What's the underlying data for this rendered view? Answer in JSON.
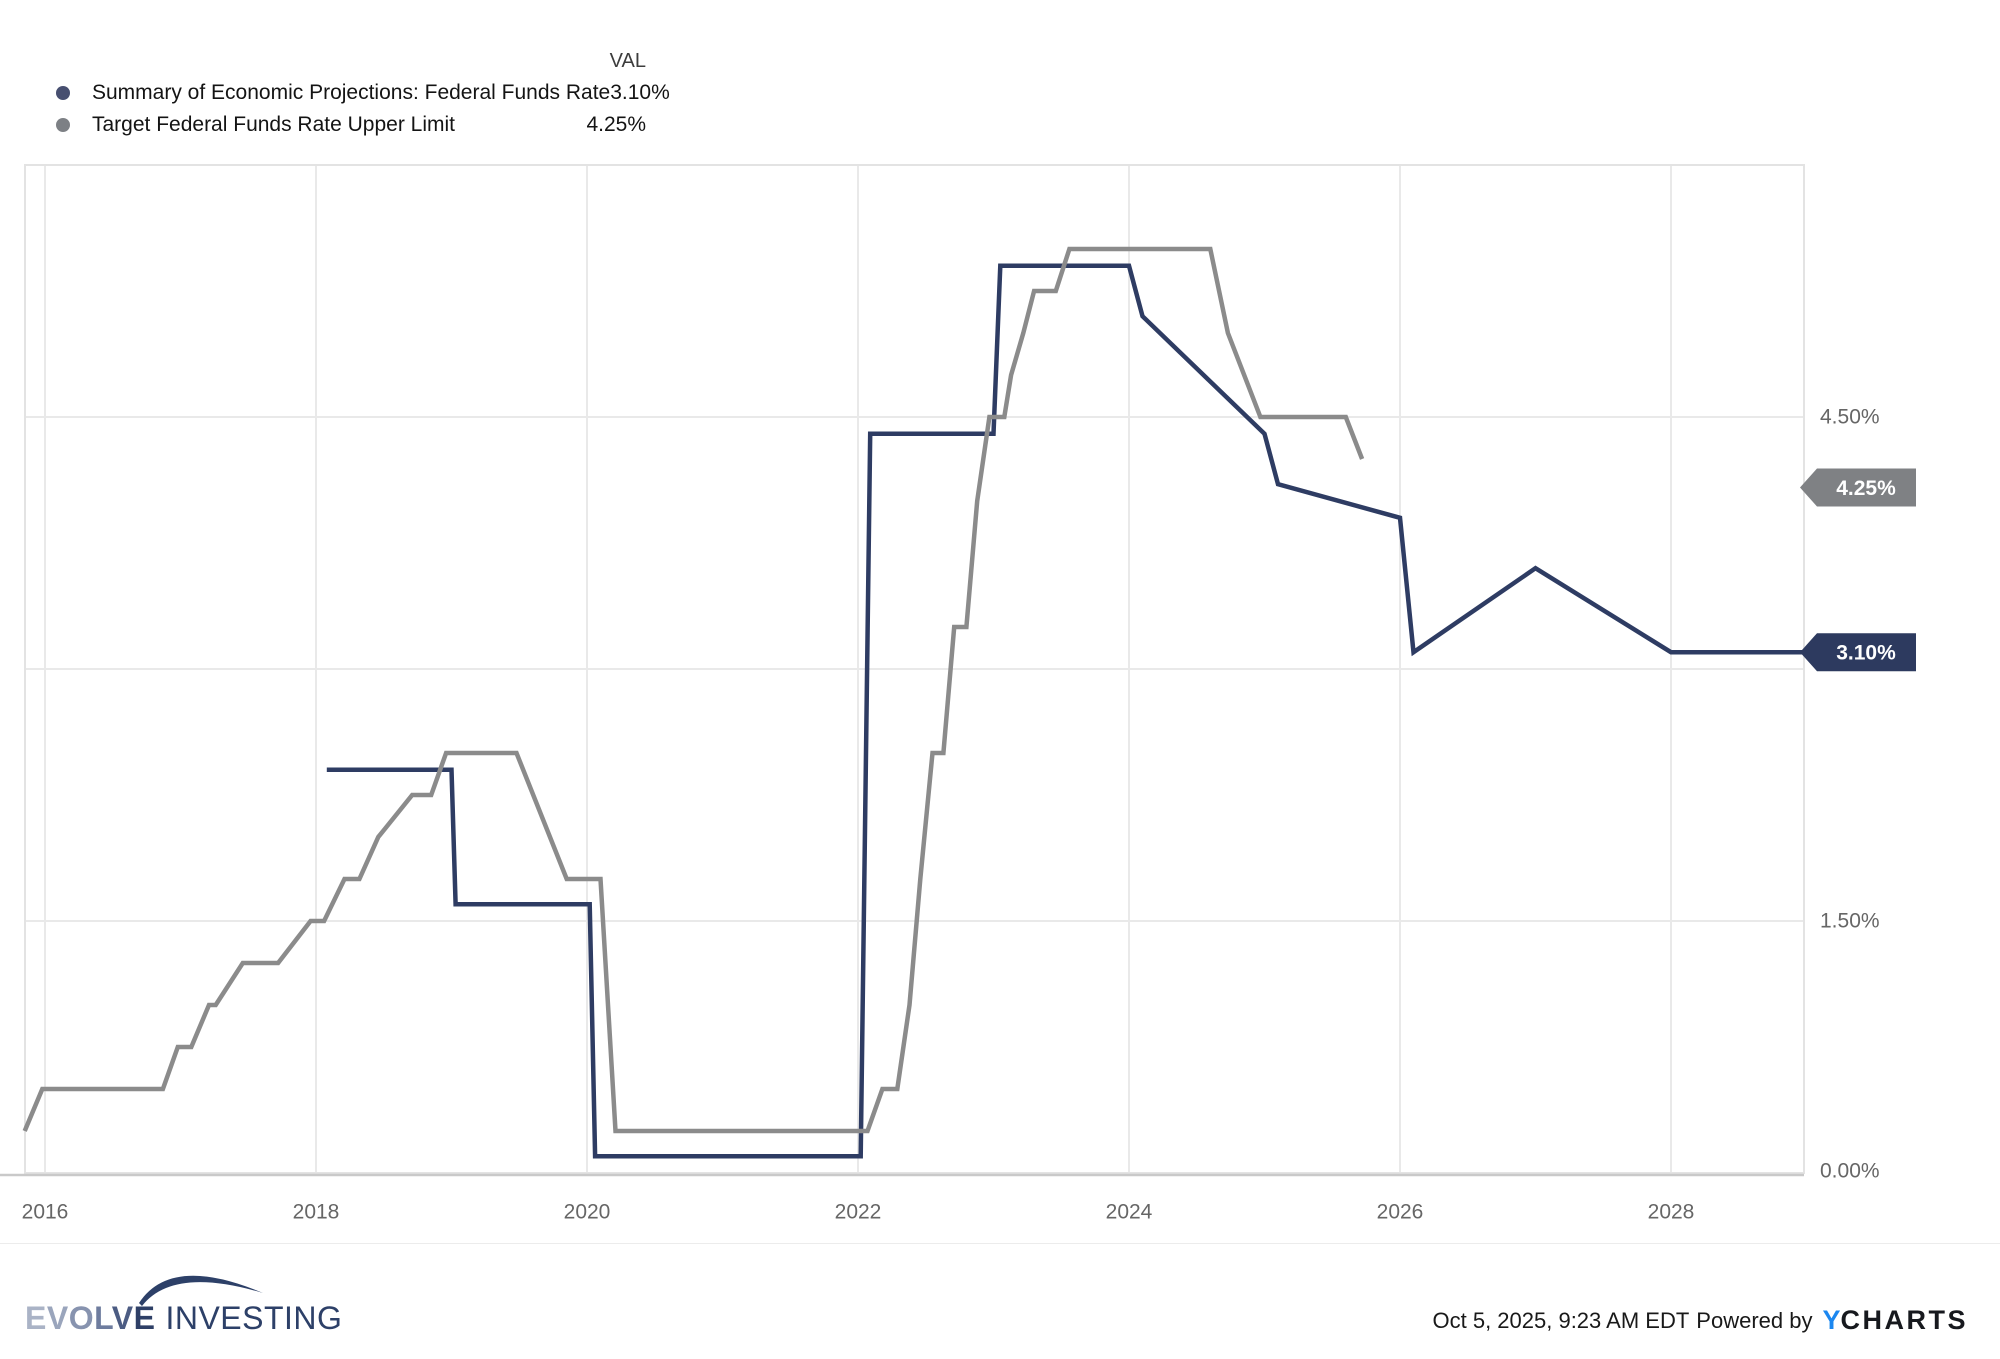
{
  "legend": {
    "val_header": "VAL",
    "rows": [
      {
        "label": "Summary of Economic Projections: Federal Funds Rate",
        "value": "3.10%"
      },
      {
        "label": "Target Federal Funds Rate Upper Limit",
        "value": "4.25%"
      }
    ]
  },
  "chart_data": {
    "type": "line",
    "title": "",
    "xlabel": "",
    "ylabel": "",
    "legend_position": "top-left",
    "grid": true,
    "x_axis": {
      "tick_labels": [
        "2016",
        "2018",
        "2020",
        "2022",
        "2024",
        "2026",
        "2028"
      ],
      "tick_values": [
        2016,
        2018,
        2020,
        2022,
        2024,
        2026,
        2028
      ],
      "range_years": [
        2015.85,
        2028.98
      ]
    },
    "y_axis": {
      "side": "right",
      "ticks": [
        {
          "label": "0.00%",
          "value": 0
        },
        {
          "label": "1.50%",
          "value": 1.5
        },
        {
          "label": "4.50%",
          "value": 4.5
        }
      ],
      "gridline_values": [
        1.5,
        3.0,
        4.5
      ],
      "range_percent": [
        0,
        6.0
      ]
    },
    "series": [
      {
        "name": "Summary of Economic Projections: Federal Funds Rate",
        "color": "#2e3c63",
        "dot_color": "#474f70",
        "current_value": "3.10%",
        "points": [
          [
            2018.08,
            2.4
          ],
          [
            2019.0,
            2.4
          ],
          [
            2019.03,
            1.6
          ],
          [
            2020.02,
            1.6
          ],
          [
            2020.06,
            0.1
          ],
          [
            2022.02,
            0.1
          ],
          [
            2022.09,
            4.4
          ],
          [
            2023.0,
            4.4
          ],
          [
            2023.05,
            5.4
          ],
          [
            2024.0,
            5.4
          ],
          [
            2024.1,
            5.1
          ],
          [
            2025.0,
            4.4
          ],
          [
            2025.1,
            4.1
          ],
          [
            2026.0,
            3.9
          ],
          [
            2026.1,
            3.1
          ],
          [
            2027.0,
            3.6
          ],
          [
            2028.0,
            3.1
          ],
          [
            2028.98,
            3.1
          ]
        ]
      },
      {
        "name": "Target Federal Funds Rate Upper Limit",
        "color": "#8b8b8b",
        "dot_color": "#7d8085",
        "current_value": "4.25%",
        "points": [
          [
            2015.85,
            0.25
          ],
          [
            2015.98,
            0.5
          ],
          [
            2016.87,
            0.5
          ],
          [
            2016.98,
            0.75
          ],
          [
            2017.08,
            0.75
          ],
          [
            2017.21,
            1.0
          ],
          [
            2017.26,
            1.0
          ],
          [
            2017.46,
            1.25
          ],
          [
            2017.72,
            1.25
          ],
          [
            2017.96,
            1.5
          ],
          [
            2018.06,
            1.5
          ],
          [
            2018.21,
            1.75
          ],
          [
            2018.32,
            1.75
          ],
          [
            2018.46,
            2.0
          ],
          [
            2018.71,
            2.25
          ],
          [
            2018.85,
            2.25
          ],
          [
            2018.96,
            2.5
          ],
          [
            2019.48,
            2.5
          ],
          [
            2019.85,
            1.75
          ],
          [
            2020.1,
            1.75
          ],
          [
            2020.21,
            0.25
          ],
          [
            2022.07,
            0.25
          ],
          [
            2022.18,
            0.5
          ],
          [
            2022.29,
            0.5
          ],
          [
            2022.38,
            1.0
          ],
          [
            2022.46,
            1.75
          ],
          [
            2022.55,
            2.5
          ],
          [
            2022.63,
            2.5
          ],
          [
            2022.71,
            3.25
          ],
          [
            2022.8,
            3.25
          ],
          [
            2022.88,
            4.0
          ],
          [
            2022.97,
            4.5
          ],
          [
            2023.08,
            4.5
          ],
          [
            2023.13,
            4.75
          ],
          [
            2023.22,
            5.0
          ],
          [
            2023.3,
            5.25
          ],
          [
            2023.46,
            5.25
          ],
          [
            2023.56,
            5.5
          ],
          [
            2024.6,
            5.5
          ],
          [
            2024.73,
            5.0
          ],
          [
            2024.97,
            4.5
          ],
          [
            2025.6,
            4.5
          ],
          [
            2025.72,
            4.25
          ]
        ]
      }
    ],
    "value_badges": [
      {
        "label": "4.25%",
        "bg_color": "#7f8184",
        "text_color": "#ffffff",
        "anchor_value_percent": 4.08
      },
      {
        "label": "3.10%",
        "bg_color": "#2d3a5f",
        "text_color": "#ffffff",
        "anchor_value_percent": 3.1
      }
    ],
    "colors": {
      "gridline": "#e9e9e9",
      "plot_border": "#e3e3e3",
      "axis_line": "#c9c9c9",
      "tick_text": "#666666"
    }
  },
  "footer": {
    "brand": {
      "word1": "EVOLVE",
      "word1_letter_colors": [
        "#aab3c6",
        "#9aa5bc",
        "#8793af",
        "#6e7c9e",
        "#4c5c83",
        "#2e3f66"
      ],
      "word2": "INVESTING",
      "swoosh_color": "#2d4068"
    },
    "timestamp": "Oct 5, 2025, 9:23 AM EDT",
    "powered_by": "Powered by",
    "ycharts_y": "Y",
    "ycharts_rest": "CHARTS"
  }
}
